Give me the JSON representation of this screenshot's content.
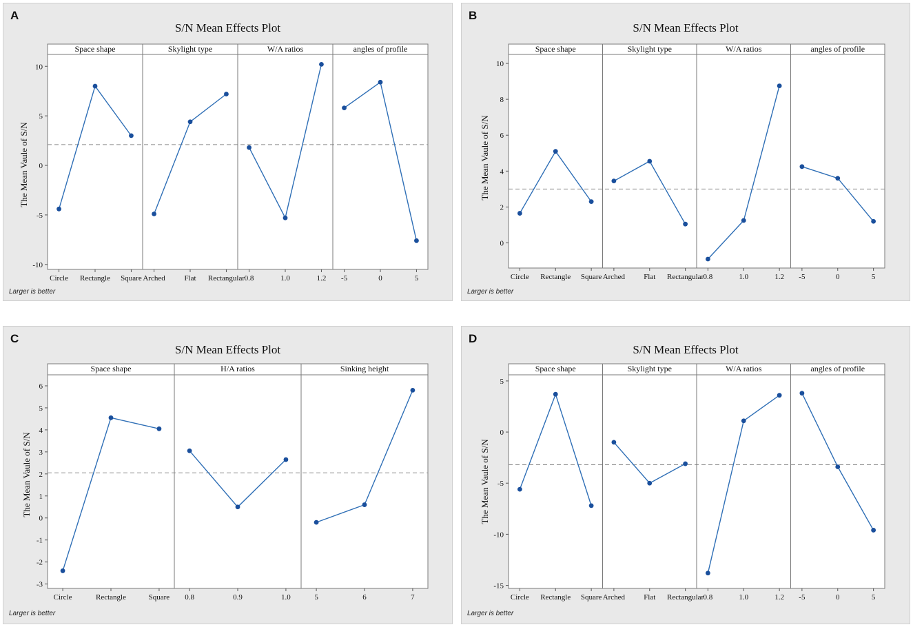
{
  "chart_data": [
    {
      "type": "line",
      "panel_label": "A",
      "title": "S/N Mean Effects Plot",
      "ylabel": "The Mean Vaule of S/N",
      "note": "Larger is better",
      "ylim": [
        -10.5,
        11.2
      ],
      "yticks": [
        -10,
        -5,
        0,
        5,
        10
      ],
      "reference_mean": 2.1,
      "factors": [
        {
          "name": "Space shape",
          "levels": [
            "Circle",
            "Rectangle",
            "Square"
          ],
          "values": [
            -4.4,
            8.0,
            3.0
          ]
        },
        {
          "name": "Skylight type",
          "levels": [
            "Arched",
            "Flat",
            "Rectangular"
          ],
          "values": [
            -4.9,
            4.4,
            7.2
          ]
        },
        {
          "name": "W/A ratios",
          "levels": [
            "0.8",
            "1.0",
            "1.2"
          ],
          "values": [
            1.8,
            -5.3,
            10.2
          ]
        },
        {
          "name": "angles of profile",
          "levels": [
            "-5",
            "0",
            "5"
          ],
          "values": [
            5.8,
            8.4,
            -7.6
          ]
        }
      ]
    },
    {
      "type": "line",
      "panel_label": "B",
      "title": "S/N Mean Effects Plot",
      "ylabel": "The Mean Vaule of S/N",
      "note": "Larger is better",
      "ylim": [
        -1.4,
        10.5
      ],
      "yticks": [
        0,
        2,
        4,
        6,
        8,
        10
      ],
      "reference_mean": 3.0,
      "factors": [
        {
          "name": "Space shape",
          "levels": [
            "Circle",
            "Rectangle",
            "Square"
          ],
          "values": [
            1.65,
            5.1,
            2.3
          ]
        },
        {
          "name": "Skylight type",
          "levels": [
            "Arched",
            "Flat",
            "Rectangular"
          ],
          "values": [
            3.45,
            4.55,
            1.05
          ]
        },
        {
          "name": "W/A ratios",
          "levels": [
            "0.8",
            "1.0",
            "1.2"
          ],
          "values": [
            -0.9,
            1.25,
            8.75
          ]
        },
        {
          "name": "angles of profile",
          "levels": [
            "-5",
            "0",
            "5"
          ],
          "values": [
            4.25,
            3.6,
            1.2
          ]
        }
      ]
    },
    {
      "type": "line",
      "panel_label": "C",
      "title": "S/N Mean Effects Plot",
      "ylabel": "The Mean Vaule of S/N",
      "note": "Larger is better",
      "ylim": [
        -3.2,
        6.5
      ],
      "yticks": [
        -3,
        -2,
        -1,
        0,
        1,
        2,
        3,
        4,
        5,
        6
      ],
      "reference_mean": 2.05,
      "factors": [
        {
          "name": "Space shape",
          "levels": [
            "Circle",
            "Rectangle",
            "Square"
          ],
          "values": [
            -2.4,
            4.55,
            4.05
          ]
        },
        {
          "name": "H/A ratios",
          "levels": [
            "0.8",
            "0.9",
            "1.0"
          ],
          "values": [
            3.05,
            0.5,
            2.65
          ]
        },
        {
          "name": "Sinking height",
          "levels": [
            "5",
            "6",
            "7"
          ],
          "values": [
            -0.2,
            0.6,
            5.8
          ]
        }
      ]
    },
    {
      "type": "line",
      "panel_label": "D",
      "title": "S/N Mean Effects Plot",
      "ylabel": "The Mean Vaule of S/N",
      "note": "Larger is better",
      "ylim": [
        -15.3,
        5.6
      ],
      "yticks": [
        -15,
        -10,
        -5,
        0,
        5
      ],
      "reference_mean": -3.2,
      "factors": [
        {
          "name": "Space shape",
          "levels": [
            "Circle",
            "Rectangle",
            "Square"
          ],
          "values": [
            -5.6,
            3.7,
            -7.2
          ]
        },
        {
          "name": "Skylight type",
          "levels": [
            "Arched",
            "Flat",
            "Rectangular"
          ],
          "values": [
            -1.0,
            -5.0,
            -3.1
          ]
        },
        {
          "name": "W/A ratios",
          "levels": [
            "0.8",
            "1.0",
            "1.2"
          ],
          "values": [
            -13.8,
            1.1,
            3.6
          ]
        },
        {
          "name": "angles of profile",
          "levels": [
            "-5",
            "0",
            "5"
          ],
          "values": [
            3.8,
            -3.4,
            -9.6
          ]
        }
      ]
    }
  ]
}
